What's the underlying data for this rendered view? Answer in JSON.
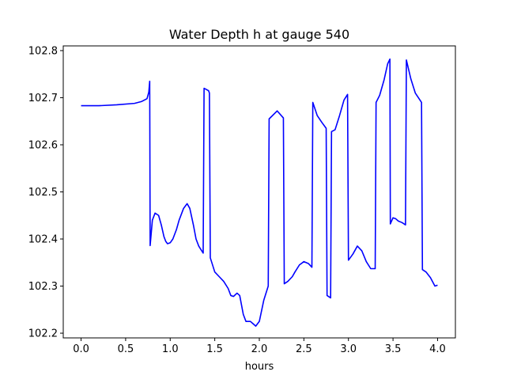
{
  "chart_data": {
    "type": "line",
    "title": "Water Depth h at gauge 540",
    "xlabel": "hours",
    "ylabel": "",
    "xlim": [
      -0.2,
      4.2
    ],
    "ylim": [
      102.19,
      102.81
    ],
    "grid": false,
    "legend": "none",
    "x_ticks": [
      "0.0",
      "0.5",
      "1.0",
      "1.5",
      "2.0",
      "2.5",
      "3.0",
      "3.5",
      "4.0"
    ],
    "y_ticks": [
      "102.2",
      "102.3",
      "102.4",
      "102.5",
      "102.6",
      "102.7",
      "102.8"
    ],
    "series": [
      {
        "color": "#0000ff",
        "x": [
          0.0,
          0.2,
          0.4,
          0.6,
          0.68,
          0.74,
          0.76,
          0.77,
          0.775,
          0.8,
          0.83,
          0.87,
          0.9,
          0.93,
          0.95,
          0.97,
          1.0,
          1.03,
          1.07,
          1.1,
          1.15,
          1.19,
          1.22,
          1.26,
          1.29,
          1.32,
          1.37,
          1.38,
          1.43,
          1.44,
          1.45,
          1.5,
          1.55,
          1.6,
          1.65,
          1.68,
          1.71,
          1.75,
          1.78,
          1.82,
          1.85,
          1.9,
          1.93,
          1.96,
          2.0,
          2.05,
          2.1,
          2.11,
          2.2,
          2.27,
          2.28,
          2.32,
          2.37,
          2.4,
          2.45,
          2.5,
          2.55,
          2.59,
          2.6,
          2.65,
          2.7,
          2.75,
          2.76,
          2.8,
          2.81,
          2.85,
          2.9,
          2.95,
          2.99,
          3.0,
          3.05,
          3.1,
          3.15,
          3.2,
          3.25,
          3.3,
          3.31,
          3.35,
          3.4,
          3.44,
          3.465,
          3.47,
          3.5,
          3.53,
          3.56,
          3.6,
          3.64,
          3.65,
          3.7,
          3.75,
          3.82,
          3.83,
          3.87,
          3.92,
          3.97,
          4.0
        ],
        "y": [
          102.683,
          102.683,
          102.685,
          102.688,
          102.692,
          102.698,
          102.712,
          102.735,
          102.386,
          102.44,
          102.455,
          102.45,
          102.43,
          102.405,
          102.395,
          102.39,
          102.392,
          102.4,
          102.42,
          102.44,
          102.465,
          102.475,
          102.465,
          102.43,
          102.4,
          102.385,
          102.37,
          102.72,
          102.715,
          102.71,
          102.36,
          102.33,
          102.32,
          102.31,
          102.295,
          102.28,
          102.278,
          102.285,
          102.28,
          102.24,
          102.225,
          102.225,
          102.22,
          102.215,
          102.225,
          102.27,
          102.3,
          102.655,
          102.672,
          102.657,
          102.305,
          102.31,
          102.32,
          102.33,
          102.345,
          102.352,
          102.348,
          102.34,
          102.69,
          102.662,
          102.648,
          102.635,
          102.28,
          102.275,
          102.628,
          102.632,
          102.662,
          102.695,
          102.707,
          102.355,
          102.368,
          102.385,
          102.375,
          102.352,
          102.337,
          102.337,
          102.69,
          102.705,
          102.738,
          102.772,
          102.782,
          102.432,
          102.445,
          102.443,
          102.438,
          102.435,
          102.43,
          102.78,
          102.74,
          102.71,
          102.69,
          102.335,
          102.33,
          102.318,
          102.3,
          102.302
        ]
      }
    ]
  }
}
